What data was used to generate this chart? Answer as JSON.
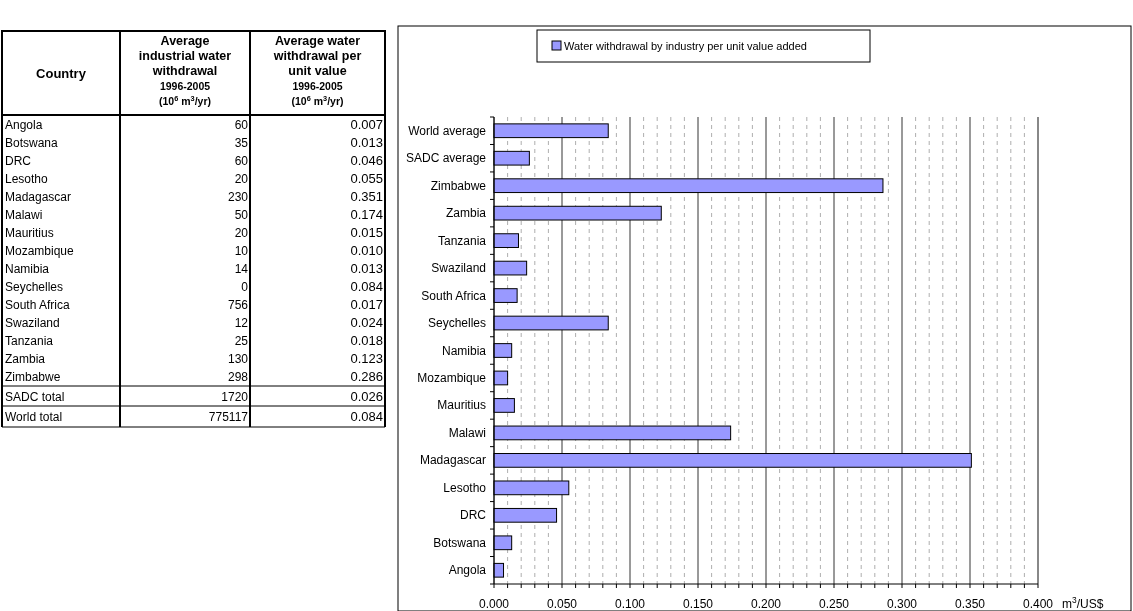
{
  "chart_data": [
    {
      "type": "other",
      "annotations": [
        "Country"
      ],
      "categories": [
        "Angola",
        "Botswana",
        "DRC",
        "Lesotho",
        "Madagascar",
        "Malawi",
        "Mauritius",
        "Mozambique",
        "Namibia",
        "Seychelles",
        "South Africa",
        "Swaziland",
        "Tanzania",
        "Zambia",
        "Zimbabwe",
        "SADC total",
        "World total"
      ],
      "series": [
        {
          "name": "Average\nindustrial water\nwithdrawal\n1996-2005\n(10$^{6}$ m$^{3}$/yr)",
          "values": [
            60,
            35,
            60,
            20,
            230,
            50,
            20,
            10,
            14,
            0,
            756,
            12,
            25,
            130,
            298,
            1720,
            775117
          ],
          "value_labels": [
            "60",
            "35",
            "60",
            "20",
            "230",
            "50",
            "20",
            "10",
            "14",
            "0",
            "756",
            "12",
            "25",
            "130",
            "298",
            "1720",
            "775117"
          ]
        },
        {
          "name": "Average water\nwithdrawal per\nunit value\n1996-2005\n(10$^{6}$ m$^{3}$/yr)",
          "values": [
            0.007,
            0.013,
            0.046,
            0.055,
            0.351,
            0.174,
            0.015,
            0.01,
            0.013,
            0.084,
            0.017,
            0.024,
            0.018,
            0.123,
            0.286,
            0.026,
            0.084
          ],
          "value_labels": [
            "0.007",
            "0.013",
            "0.046",
            "0.055",
            "0.351",
            "0.174",
            "0.015",
            "0.010",
            "0.013",
            "0.084",
            "0.017",
            "0.024",
            "0.018",
            "0.123",
            "0.286",
            "0.026",
            "0.084"
          ]
        }
      ]
    },
    {
      "type": "bar",
      "orientation": "horizontal",
      "xlabel": "m$^{3}$/US$",
      "legend": "top",
      "grid": "x",
      "categories": [
        "World average",
        "SADC average",
        "Zimbabwe",
        "Zambia",
        "Tanzania",
        "Swaziland",
        "South Africa",
        "Seychelles",
        "Namibia",
        "Mozambique",
        "Mauritius",
        "Malawi",
        "Madagascar",
        "Lesotho",
        "DRC",
        "Botswana",
        "Angola"
      ],
      "series": [
        {
          "name": "Water withdrawal by industry per unit value added",
          "color": "#9999ff",
          "values": [
            0.084,
            0.026,
            0.286,
            0.123,
            0.018,
            0.024,
            0.017,
            0.084,
            0.013,
            0.01,
            0.015,
            0.174,
            0.351,
            0.055,
            0.046,
            0.013,
            0.007
          ]
        }
      ],
      "xlim": [
        0,
        0.4
      ],
      "xticks": [
        {
          "value": 0,
          "label": "0.000"
        },
        {
          "value": 0.01,
          "label": null
        },
        {
          "value": 0.02,
          "label": null
        },
        {
          "value": 0.03,
          "label": null
        },
        {
          "value": 0.04,
          "label": null
        },
        {
          "value": 0.05,
          "label": "0.050"
        },
        {
          "value": 0.06,
          "label": null
        },
        {
          "value": 0.07,
          "label": null
        },
        {
          "value": 0.08,
          "label": null
        },
        {
          "value": 0.09,
          "label": null
        },
        {
          "value": 0.1,
          "label": "0.100"
        },
        {
          "value": 0.11,
          "label": null
        },
        {
          "value": 0.12,
          "label": null
        },
        {
          "value": 0.13,
          "label": null
        },
        {
          "value": 0.14,
          "label": null
        },
        {
          "value": 0.15,
          "label": "0.150"
        },
        {
          "value": 0.16,
          "label": null
        },
        {
          "value": 0.17,
          "label": null
        },
        {
          "value": 0.18,
          "label": null
        },
        {
          "value": 0.19,
          "label": null
        },
        {
          "value": 0.2,
          "label": "0.200"
        },
        {
          "value": 0.21,
          "label": null
        },
        {
          "value": 0.22,
          "label": null
        },
        {
          "value": 0.23,
          "label": null
        },
        {
          "value": 0.24,
          "label": null
        },
        {
          "value": 0.25,
          "label": "0.250"
        },
        {
          "value": 0.26,
          "label": null
        },
        {
          "value": 0.27,
          "label": null
        },
        {
          "value": 0.28,
          "label": null
        },
        {
          "value": 0.29,
          "label": null
        },
        {
          "value": 0.3,
          "label": "0.300"
        },
        {
          "value": 0.31,
          "label": null
        },
        {
          "value": 0.32,
          "label": null
        },
        {
          "value": 0.33,
          "label": null
        },
        {
          "value": 0.34,
          "label": null
        },
        {
          "value": 0.35,
          "label": "0.350"
        },
        {
          "value": 0.36,
          "label": null
        },
        {
          "value": 0.37,
          "label": null
        },
        {
          "value": 0.38,
          "label": null
        },
        {
          "value": 0.39,
          "label": null
        },
        {
          "value": 0.4,
          "label": "0.400"
        }
      ]
    }
  ]
}
